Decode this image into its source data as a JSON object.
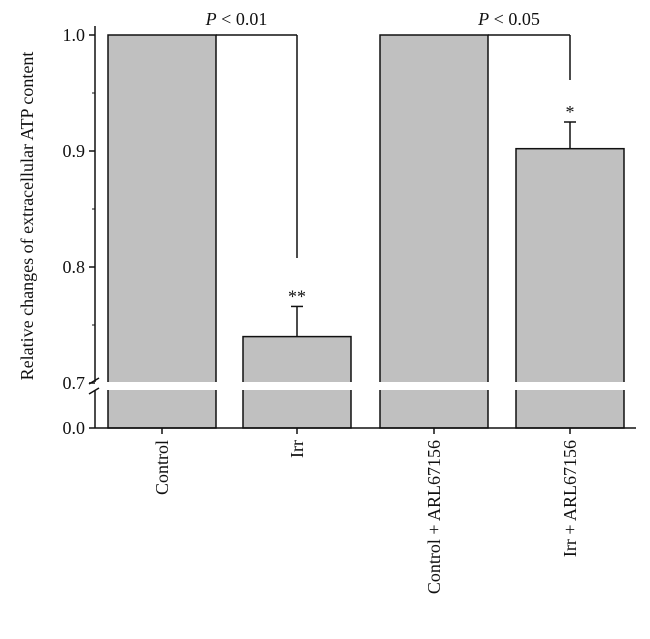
{
  "chart_data": {
    "type": "bar",
    "ylabel": "Relative changes of extracellular ATP content",
    "categories": [
      "Control",
      "Irr",
      "Control + ARL67156",
      "Irr + ARL67156"
    ],
    "values": [
      1.0,
      0.74,
      1.0,
      0.902
    ],
    "errors": [
      null,
      0.026,
      null,
      0.023
    ],
    "annotations": [
      null,
      "**",
      null,
      "*"
    ],
    "yticks": [
      "0.0",
      "0.7",
      "0.8",
      "0.9",
      "1.0"
    ],
    "ylim": [
      0.0,
      1.0
    ],
    "axis_break": [
      0.0,
      0.7
    ],
    "comparisons": [
      {
        "from": 0,
        "to": 1,
        "p_symbol": "P",
        "p_text": "< 0.01"
      },
      {
        "from": 2,
        "to": 3,
        "p_symbol": "P",
        "p_text": "< 0.05"
      }
    ],
    "grid": false,
    "colors": {
      "bar": "#c0c0c0",
      "stroke": "#111111",
      "break": "#ffffff"
    }
  }
}
